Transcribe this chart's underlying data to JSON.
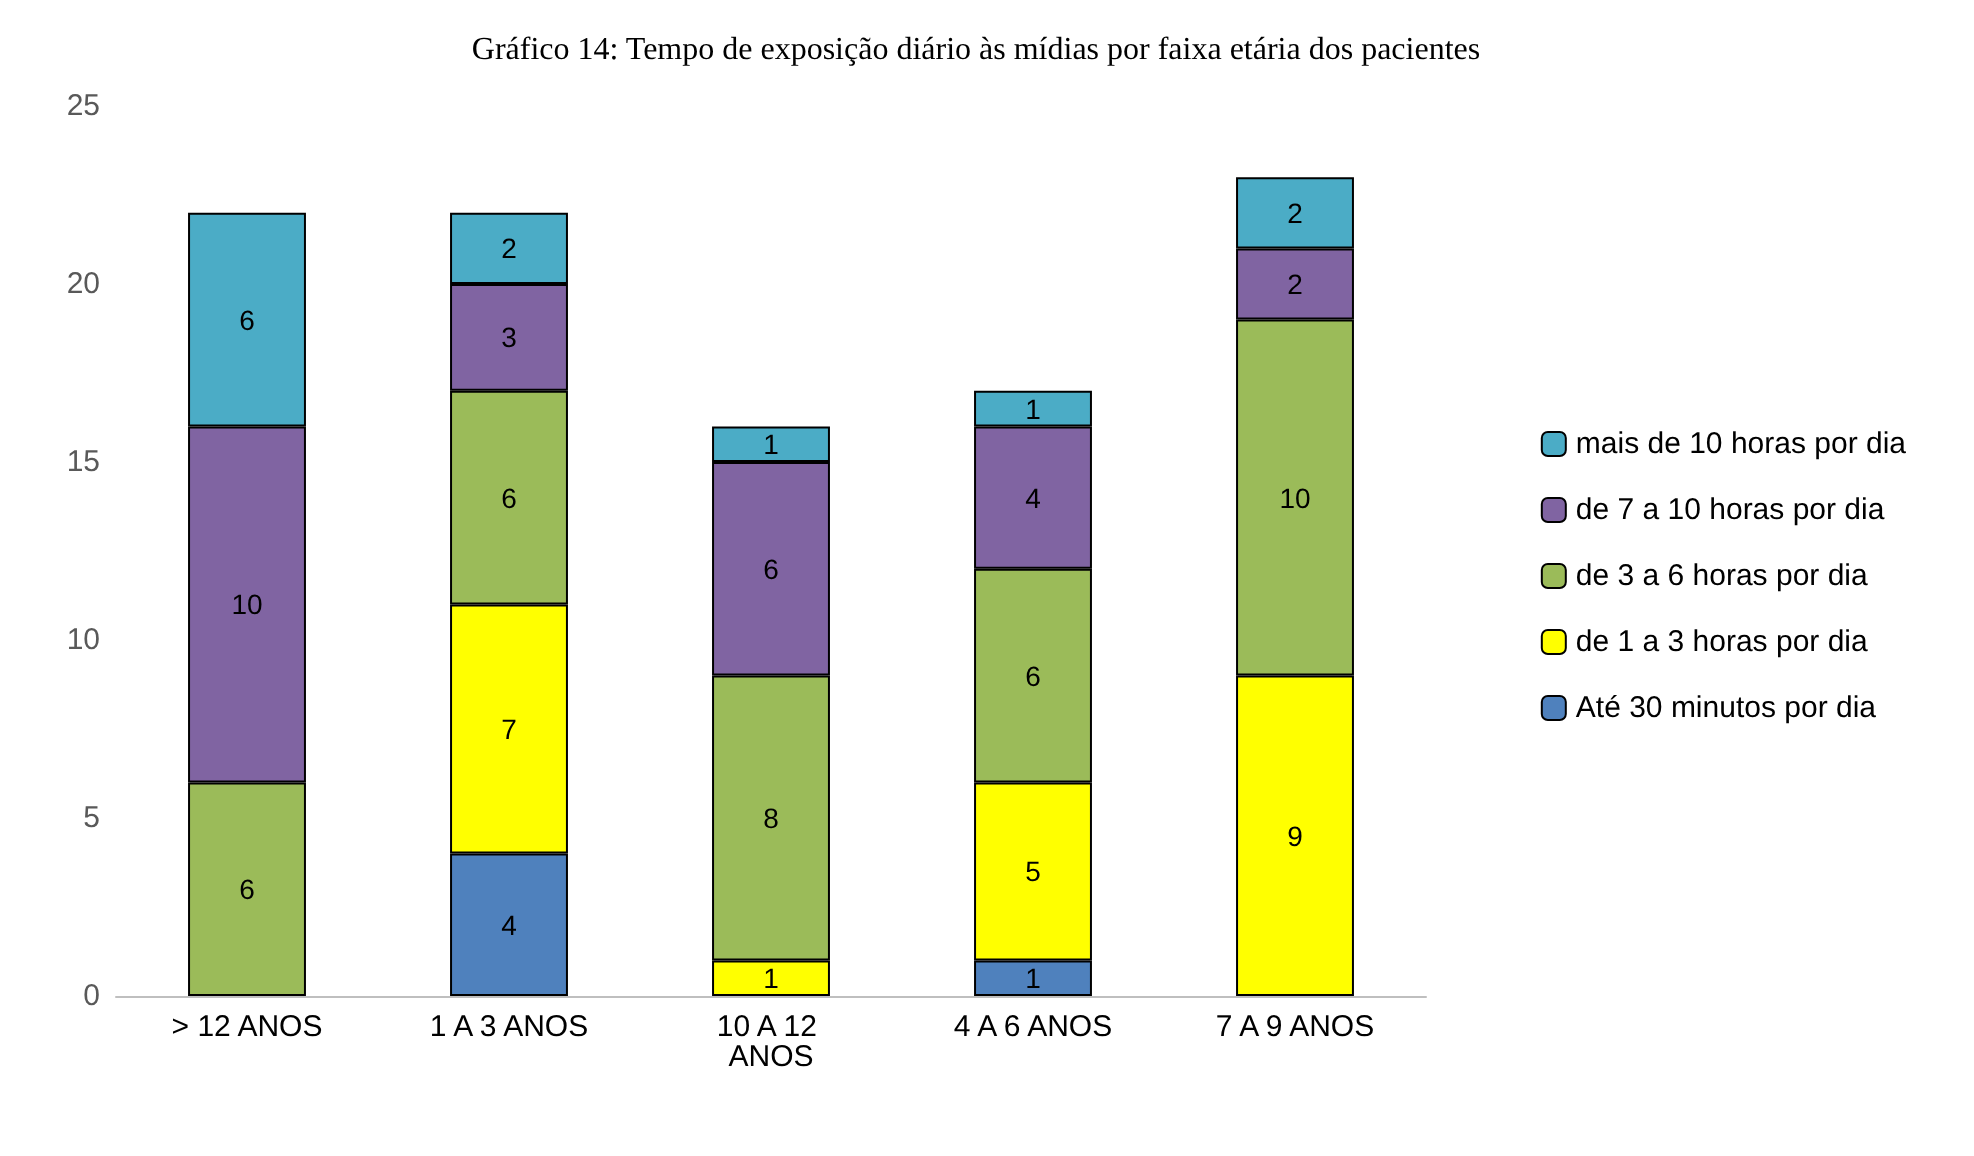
{
  "chart_data": {
    "type": "bar",
    "title": "Gráfico 14: Tempo de exposição diário às mídias por faixa etária dos pacientes",
    "categories": [
      "> 12 ANOS",
      "1 A 3 ANOS",
      "10 A 12 ANOS",
      "4 A 6 ANOS",
      "7 A 9 ANOS"
    ],
    "stacked": true,
    "series": [
      {
        "name": "Até 30 minutos por dia",
        "color": "#4f81bd",
        "values": [
          null,
          4,
          null,
          1,
          null
        ]
      },
      {
        "name": "de 1 a 3 horas por dia",
        "color": "#ffff00",
        "values": [
          null,
          7,
          1,
          5,
          9
        ]
      },
      {
        "name": "de 3 a 6 horas por dia",
        "color": "#9bbb59",
        "values": [
          6,
          6,
          8,
          6,
          10
        ]
      },
      {
        "name": "de 7 a 10 horas por dia",
        "color": "#8064a2",
        "values": [
          10,
          3,
          6,
          4,
          2
        ]
      },
      {
        "name": "mais de 10 horas por dia",
        "color": "#4bacc6",
        "values": [
          6,
          2,
          1,
          1,
          2
        ]
      }
    ],
    "ylim": [
      0,
      25
    ],
    "yticks": [
      0,
      5,
      10,
      15,
      20,
      25
    ],
    "grid": false,
    "legend": "right",
    "data_labels": true
  }
}
